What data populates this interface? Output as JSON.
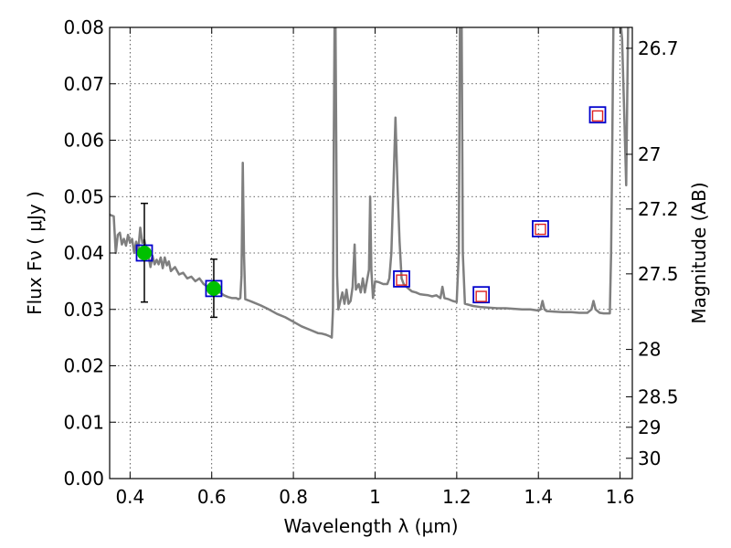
{
  "chart_data": {
    "type": "scatter",
    "xlabel": "Wavelength  λ (μm)",
    "ylabel": "Flux  Fν ( μJy )",
    "ylabel_right": "Magnitude (AB)",
    "xlim": [
      0.35,
      1.63
    ],
    "ylim": [
      0.0,
      0.08
    ],
    "grid": true,
    "x_ticks": [
      0.4,
      0.6,
      0.8,
      1.0,
      1.2,
      1.4,
      1.6
    ],
    "x_tick_labels": [
      "0.4",
      "0.6",
      "0.8",
      "1",
      "1.2",
      "1.4",
      "1.6"
    ],
    "y_ticks": [
      0.0,
      0.01,
      0.02,
      0.03,
      0.04,
      0.05,
      0.06,
      0.07,
      0.08
    ],
    "y_tick_labels": [
      "0.00",
      "0.01",
      "0.02",
      "0.03",
      "0.04",
      "0.05",
      "0.06",
      "0.07",
      "0.08"
    ],
    "right_ticks": [
      {
        "label": "26.7",
        "flux": 0.0763
      },
      {
        "label": "27",
        "flux": 0.0575
      },
      {
        "label": "27.2",
        "flux": 0.0478
      },
      {
        "label": "27.5",
        "flux": 0.0363
      },
      {
        "label": "28",
        "flux": 0.0229
      },
      {
        "label": "28.5",
        "flux": 0.0145
      },
      {
        "label": "29",
        "flux": 0.0091
      },
      {
        "label": "30",
        "flux": 0.0036
      }
    ],
    "series": [
      {
        "kind": "observed",
        "color": "#00c000",
        "points": [
          {
            "x": 0.435,
            "y": 0.04,
            "yerr_low": 0.0087,
            "yerr_high": 0.0088
          },
          {
            "x": 0.605,
            "y": 0.0337,
            "yerr_low": 0.0051,
            "yerr_high": 0.0052
          }
        ]
      },
      {
        "kind": "model_photometry",
        "color": "#0000cc",
        "points": [
          {
            "x": 0.435,
            "y": 0.04
          },
          {
            "x": 0.605,
            "y": 0.0337
          },
          {
            "x": 1.065,
            "y": 0.0354
          },
          {
            "x": 1.26,
            "y": 0.0326
          },
          {
            "x": 1.405,
            "y": 0.0443
          },
          {
            "x": 1.545,
            "y": 0.0645
          }
        ]
      },
      {
        "kind": "predicted",
        "color": "#dd2222",
        "points": [
          {
            "x": 1.065,
            "y": 0.0352
          },
          {
            "x": 1.26,
            "y": 0.0323
          },
          {
            "x": 1.405,
            "y": 0.0442
          },
          {
            "x": 1.545,
            "y": 0.0643
          }
        ]
      },
      {
        "kind": "spectrum",
        "color": "#7f7f7f",
        "points": [
          [
            0.35,
            0.0468
          ],
          [
            0.36,
            0.0465
          ],
          [
            0.365,
            0.04
          ],
          [
            0.37,
            0.0432
          ],
          [
            0.375,
            0.0436
          ],
          [
            0.38,
            0.0415
          ],
          [
            0.385,
            0.0425
          ],
          [
            0.39,
            0.0413
          ],
          [
            0.395,
            0.0432
          ],
          [
            0.4,
            0.0418
          ],
          [
            0.405,
            0.0425
          ],
          [
            0.41,
            0.04
          ],
          [
            0.415,
            0.042
          ],
          [
            0.42,
            0.0405
          ],
          [
            0.425,
            0.0445
          ],
          [
            0.43,
            0.0418
          ],
          [
            0.435,
            0.0423
          ],
          [
            0.44,
            0.0405
          ],
          [
            0.445,
            0.0395
          ],
          [
            0.45,
            0.0375
          ],
          [
            0.455,
            0.0395
          ],
          [
            0.46,
            0.038
          ],
          [
            0.465,
            0.0388
          ],
          [
            0.47,
            0.038
          ],
          [
            0.475,
            0.0392
          ],
          [
            0.48,
            0.0373
          ],
          [
            0.485,
            0.0392
          ],
          [
            0.49,
            0.0378
          ],
          [
            0.495,
            0.0385
          ],
          [
            0.5,
            0.0368
          ],
          [
            0.51,
            0.0375
          ],
          [
            0.52,
            0.0362
          ],
          [
            0.53,
            0.0365
          ],
          [
            0.54,
            0.0355
          ],
          [
            0.55,
            0.0358
          ],
          [
            0.56,
            0.035
          ],
          [
            0.57,
            0.0355
          ],
          [
            0.58,
            0.0345
          ],
          [
            0.59,
            0.034
          ],
          [
            0.6,
            0.0338
          ],
          [
            0.61,
            0.0333
          ],
          [
            0.62,
            0.033
          ],
          [
            0.63,
            0.0325
          ],
          [
            0.64,
            0.0322
          ],
          [
            0.65,
            0.032
          ],
          [
            0.66,
            0.032
          ],
          [
            0.665,
            0.0318
          ],
          [
            0.67,
            0.032
          ],
          [
            0.673,
            0.036
          ],
          [
            0.676,
            0.056
          ],
          [
            0.679,
            0.04
          ],
          [
            0.682,
            0.0318
          ],
          [
            0.69,
            0.0316
          ],
          [
            0.7,
            0.0313
          ],
          [
            0.72,
            0.0307
          ],
          [
            0.74,
            0.03
          ],
          [
            0.76,
            0.0292
          ],
          [
            0.78,
            0.0286
          ],
          [
            0.8,
            0.0278
          ],
          [
            0.82,
            0.027
          ],
          [
            0.84,
            0.0264
          ],
          [
            0.86,
            0.0258
          ],
          [
            0.87,
            0.0257
          ],
          [
            0.88,
            0.0255
          ],
          [
            0.89,
            0.0252
          ],
          [
            0.894,
            0.025
          ],
          [
            0.897,
            0.03
          ],
          [
            0.899,
            0.06
          ],
          [
            0.901,
            0.082
          ],
          [
            0.903,
            0.082
          ],
          [
            0.905,
            0.06
          ],
          [
            0.907,
            0.036
          ],
          [
            0.91,
            0.03
          ],
          [
            0.92,
            0.033
          ],
          [
            0.925,
            0.031
          ],
          [
            0.93,
            0.0335
          ],
          [
            0.935,
            0.031
          ],
          [
            0.94,
            0.0315
          ],
          [
            0.945,
            0.034
          ],
          [
            0.95,
            0.0415
          ],
          [
            0.953,
            0.0335
          ],
          [
            0.96,
            0.0345
          ],
          [
            0.965,
            0.033
          ],
          [
            0.97,
            0.0355
          ],
          [
            0.975,
            0.033
          ],
          [
            0.98,
            0.035
          ],
          [
            0.985,
            0.037
          ],
          [
            0.988,
            0.05
          ],
          [
            0.991,
            0.037
          ],
          [
            0.995,
            0.032
          ],
          [
            1.0,
            0.035
          ],
          [
            1.01,
            0.0348
          ],
          [
            1.02,
            0.0345
          ],
          [
            1.03,
            0.0345
          ],
          [
            1.035,
            0.0355
          ],
          [
            1.04,
            0.04
          ],
          [
            1.045,
            0.052
          ],
          [
            1.05,
            0.064
          ],
          [
            1.055,
            0.052
          ],
          [
            1.06,
            0.042
          ],
          [
            1.065,
            0.0355
          ],
          [
            1.07,
            0.0345
          ],
          [
            1.08,
            0.0338
          ],
          [
            1.09,
            0.0332
          ],
          [
            1.1,
            0.033
          ],
          [
            1.11,
            0.0327
          ],
          [
            1.12,
            0.0326
          ],
          [
            1.13,
            0.0325
          ],
          [
            1.14,
            0.0323
          ],
          [
            1.15,
            0.0325
          ],
          [
            1.16,
            0.032
          ],
          [
            1.165,
            0.034
          ],
          [
            1.17,
            0.032
          ],
          [
            1.18,
            0.0318
          ],
          [
            1.19,
            0.0315
          ],
          [
            1.2,
            0.0313
          ],
          [
            1.205,
            0.04
          ],
          [
            1.208,
            0.082
          ],
          [
            1.212,
            0.082
          ],
          [
            1.215,
            0.04
          ],
          [
            1.22,
            0.031
          ],
          [
            1.24,
            0.0306
          ],
          [
            1.26,
            0.0304
          ],
          [
            1.28,
            0.0303
          ],
          [
            1.3,
            0.0302
          ],
          [
            1.32,
            0.0302
          ],
          [
            1.34,
            0.0301
          ],
          [
            1.36,
            0.03
          ],
          [
            1.38,
            0.03
          ],
          [
            1.4,
            0.0298
          ],
          [
            1.405,
            0.03
          ],
          [
            1.41,
            0.0315
          ],
          [
            1.415,
            0.03
          ],
          [
            1.42,
            0.0297
          ],
          [
            1.44,
            0.0296
          ],
          [
            1.46,
            0.0295
          ],
          [
            1.48,
            0.0295
          ],
          [
            1.5,
            0.0294
          ],
          [
            1.52,
            0.0294
          ],
          [
            1.53,
            0.03
          ],
          [
            1.535,
            0.0315
          ],
          [
            1.54,
            0.03
          ],
          [
            1.55,
            0.0294
          ],
          [
            1.56,
            0.0293
          ],
          [
            1.57,
            0.0293
          ],
          [
            1.575,
            0.0293
          ],
          [
            1.578,
            0.04
          ],
          [
            1.581,
            0.06
          ],
          [
            1.584,
            0.082
          ],
          [
            1.6,
            0.082
          ],
          [
            1.605,
            0.078
          ],
          [
            1.61,
            0.065
          ],
          [
            1.615,
            0.052
          ],
          [
            1.62,
            0.082
          ]
        ]
      }
    ]
  }
}
